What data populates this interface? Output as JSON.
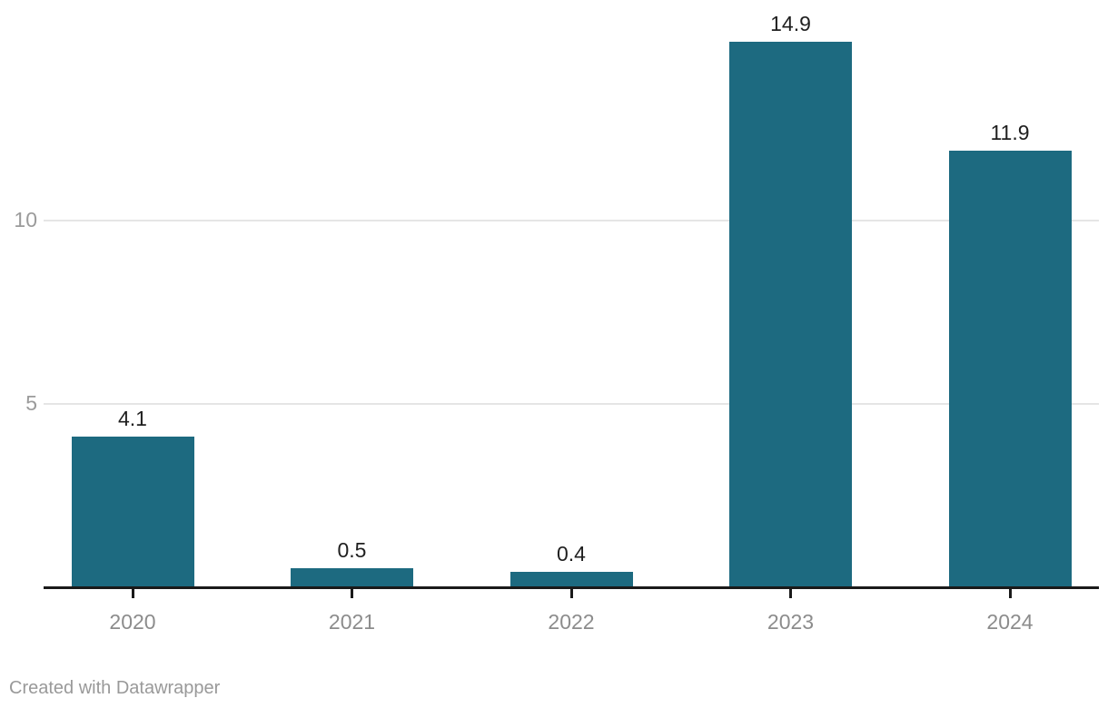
{
  "chart_data": {
    "type": "bar",
    "categories": [
      "2020",
      "2021",
      "2022",
      "2023",
      "2024"
    ],
    "values": [
      4.1,
      0.5,
      0.4,
      14.9,
      11.9
    ],
    "value_labels": [
      "4.1",
      "0.5",
      "0.4",
      "14.9",
      "11.9"
    ],
    "title": "",
    "xlabel": "",
    "ylabel": "",
    "ylim": [
      0,
      16
    ],
    "yticks": [
      5,
      10
    ],
    "grid": "horizontal",
    "legend": "none",
    "bar_color": "#1d6a80"
  },
  "colors": {
    "bar": "#1d6a80",
    "value_label": "#1f1f1f",
    "xtick_label": "#8c8c8c",
    "ytick_label": "#9b9b9b",
    "gridline": "#e5e5e5",
    "baseline": "#1a1a1a",
    "background": "#ffffff",
    "footer_text": "#999999"
  },
  "footer": {
    "attribution": "Created with Datawrapper"
  }
}
